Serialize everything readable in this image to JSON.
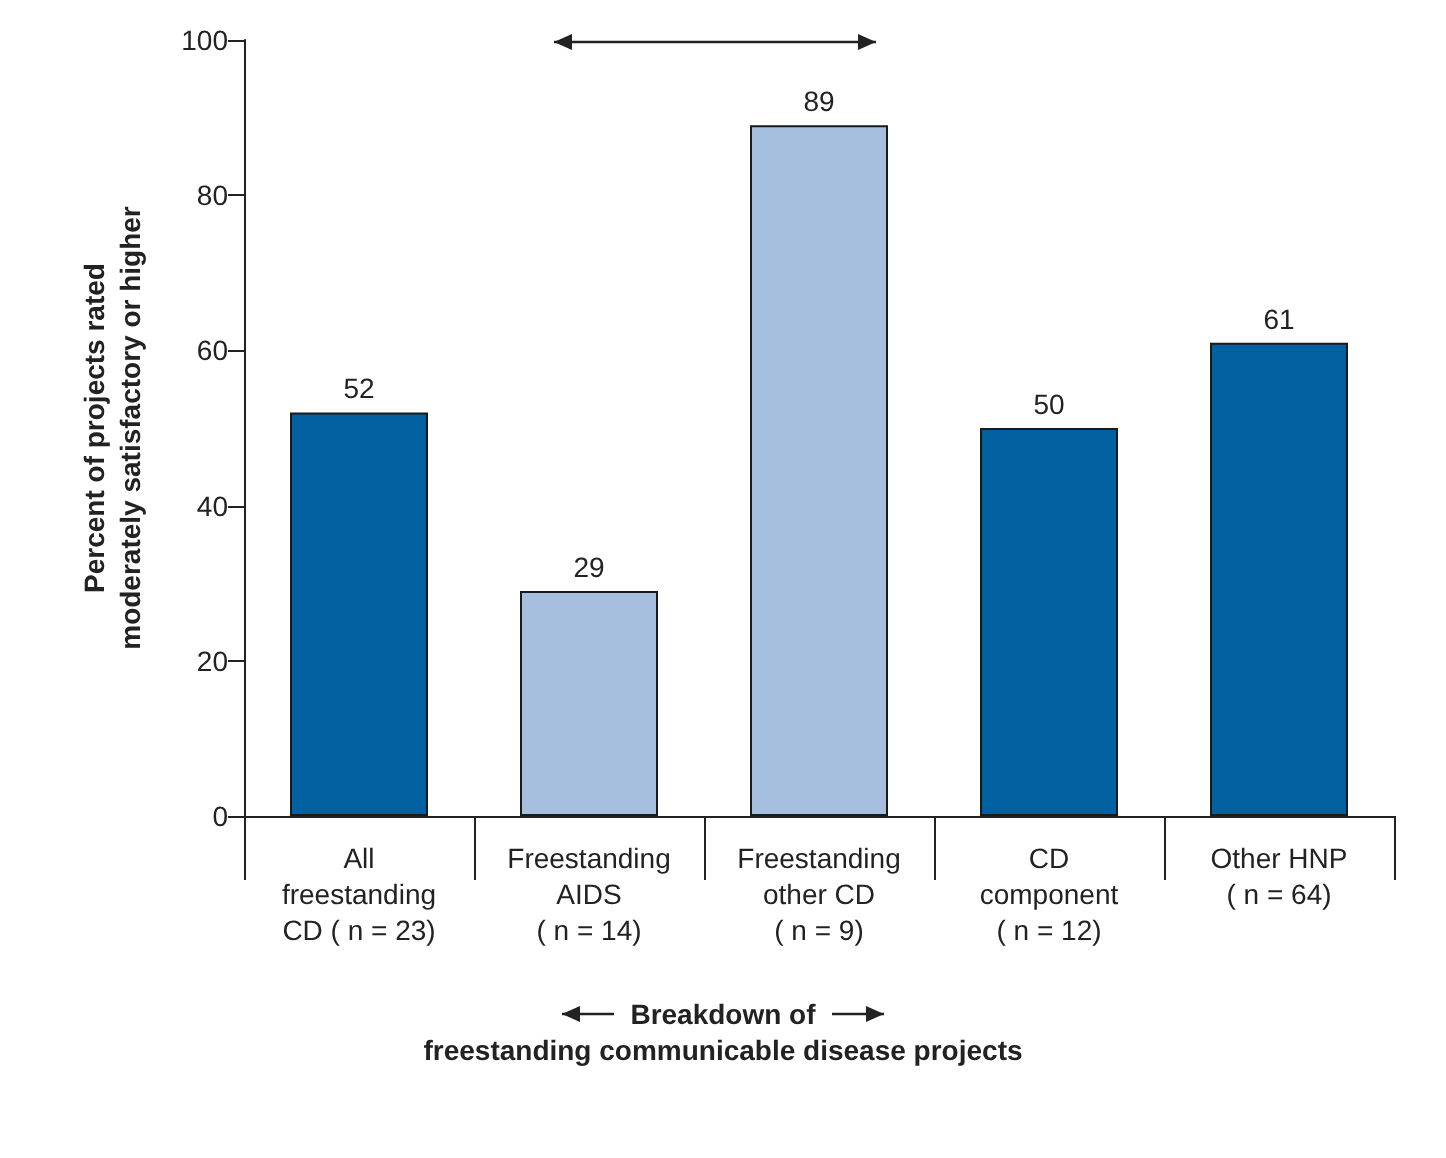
{
  "chart_data": {
    "type": "bar",
    "categories": [
      "All\nfreestanding\nCD ( n = 23)",
      "Freestanding\nAIDS\n( n = 14)",
      "Freestanding\nother CD\n( n = 9)",
      "CD\ncomponent\n( n = 12)",
      "Other HNP\n( n = 64)"
    ],
    "values": [
      52,
      29,
      89,
      50,
      61
    ],
    "colors": [
      "#0060a0",
      "#a6bfdf",
      "#a6bfdf",
      "#0060a0",
      "#0060a0"
    ],
    "ylabel": "Percent of projects rated\nmoderately satisfactory or higher",
    "xlabel": "Breakdown of\nfreestanding communicable disease projects",
    "ylim": [
      0,
      100
    ],
    "yticks": [
      0,
      20,
      40,
      60,
      80,
      100
    ],
    "data_labels": true
  }
}
